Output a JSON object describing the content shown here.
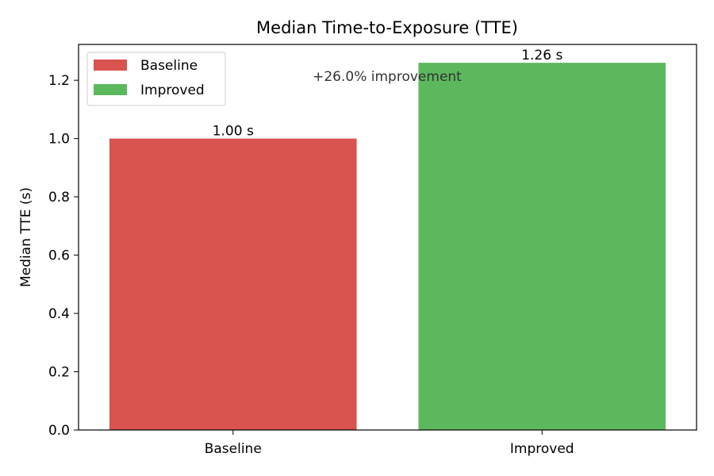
{
  "chart_data": {
    "type": "bar",
    "title": "Median Time-to-Exposure (TTE)",
    "xlabel": "",
    "ylabel": "Median TTE (s)",
    "categories": [
      "Baseline",
      "Improved"
    ],
    "values": [
      1.0,
      1.26
    ],
    "data_labels": [
      "1.00 s",
      "1.26 s"
    ],
    "colors": [
      "#d9534f",
      "#5cb85c"
    ],
    "ylim": [
      0,
      1.323
    ],
    "yticks": [
      0.0,
      0.2,
      0.4,
      0.6,
      0.8,
      1.0,
      1.2
    ],
    "ytick_labels": [
      "0.0",
      "0.2",
      "0.4",
      "0.6",
      "0.8",
      "1.0",
      "1.2"
    ],
    "grid": false,
    "legend": {
      "placement": "top-left",
      "entries": [
        {
          "label": "Baseline",
          "color": "#d9534f"
        },
        {
          "label": "Improved",
          "color": "#5cb85c"
        }
      ]
    },
    "annotation": "+26.0% improvement"
  }
}
